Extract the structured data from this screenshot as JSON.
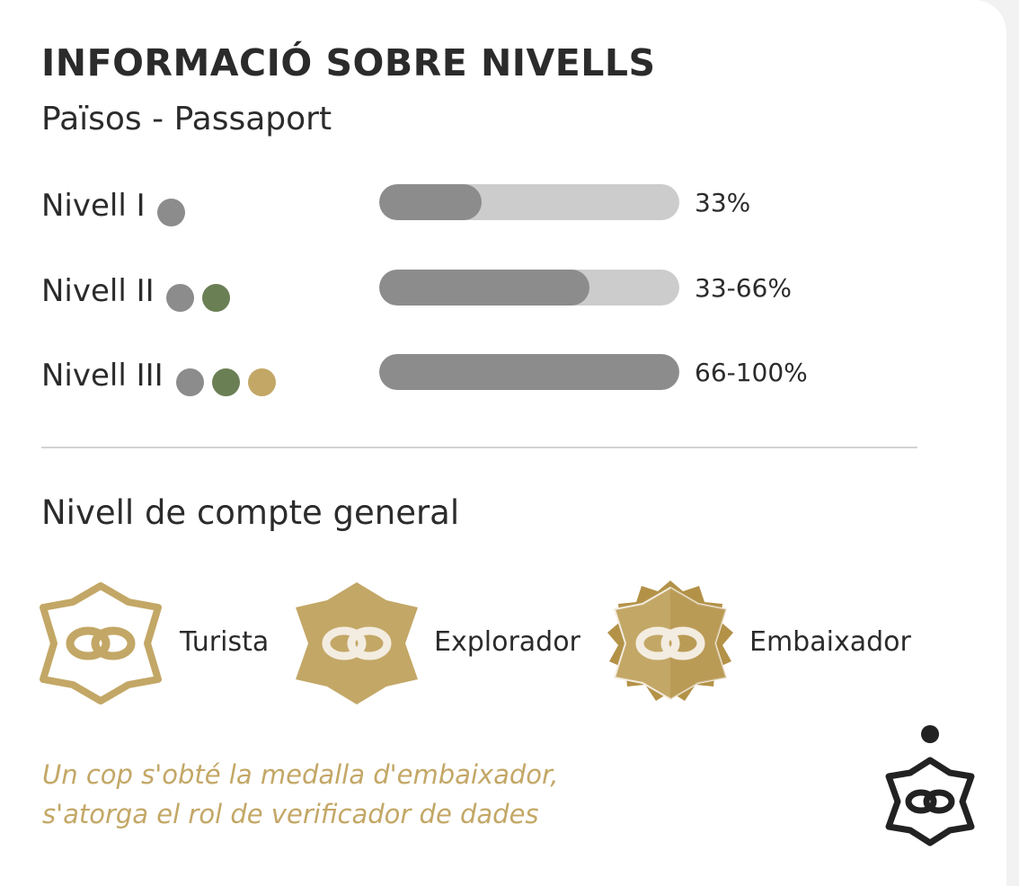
{
  "header": {
    "title": "INFORMACIÓ SOBRE NIVELLS",
    "subtitle": "Països - Passaport"
  },
  "levels": [
    {
      "label": "Nivell I",
      "percent_text": "33%",
      "bar_fill_fraction": 0.34,
      "dots": [
        "gray"
      ]
    },
    {
      "label": "Nivell II",
      "percent_text": "33-66%",
      "bar_fill_fraction": 0.7,
      "dots": [
        "gray",
        "green"
      ]
    },
    {
      "label": "Nivell III",
      "percent_text": "66-100%",
      "bar_fill_fraction": 1.0,
      "dots": [
        "gray",
        "green",
        "gold"
      ]
    }
  ],
  "account_section": {
    "title": "Nivell de compte general",
    "badges": [
      {
        "label": "Turista",
        "icon": "outline-gold-medal-icon"
      },
      {
        "label": "Explorador",
        "icon": "filled-gold-medal-icon"
      },
      {
        "label": "Embaixador",
        "icon": "ornate-gold-medal-icon"
      }
    ]
  },
  "note": {
    "line1": "Un cop s'obté la medalla d'embaixador,",
    "line2": "s'atorga el rol de verificador de dades"
  },
  "corner": {
    "icon": "black-medal-icon"
  },
  "colors": {
    "gray": "#8c8c8c",
    "green": "#6b7f55",
    "gold": "#c3a766",
    "track": "#cccccc",
    "text": "#2b2b2b",
    "gold_dark": "#b39248",
    "cream": "#f3ece0"
  }
}
